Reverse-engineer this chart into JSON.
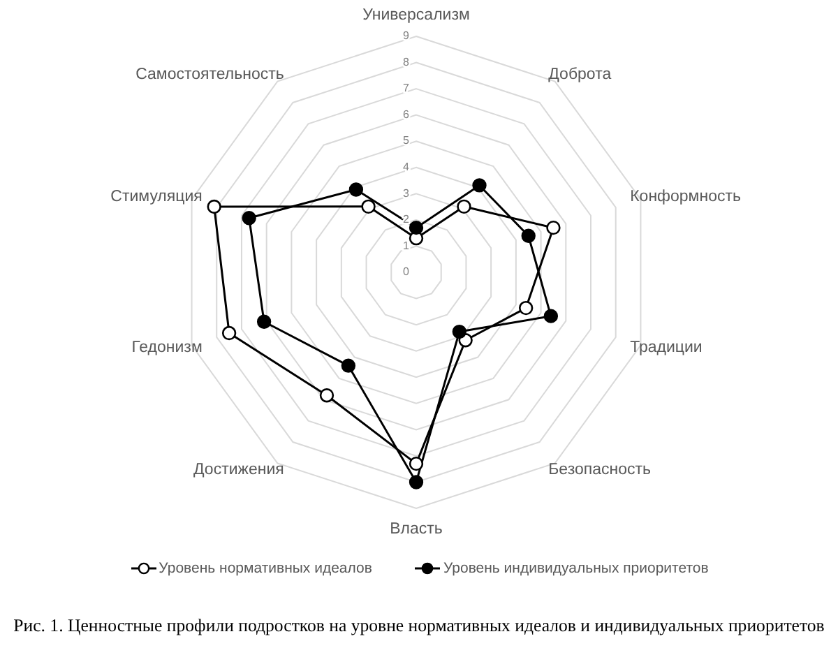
{
  "chart_data": {
    "type": "radar",
    "categories": [
      "Универсализм",
      "Доброта",
      "Конформность",
      "Традиции",
      "Безопасность",
      "Власть",
      "Достижения",
      "Гедонизм",
      "Стимуляция",
      "Самостоятельность"
    ],
    "series": [
      {
        "name": "Уровень нормативных идеалов",
        "color": "#000000",
        "colors": [
          "#ffffff",
          "#ffffff",
          "#ffffff",
          "#ffffff",
          "#ffffff",
          "#ffffff",
          "#ffffff",
          "#ffffff",
          "#ffffff",
          "#ffffff"
        ],
        "values": [
          1.3,
          3.1,
          5.5,
          4.4,
          3.2,
          7.3,
          5.8,
          7.5,
          8.1,
          3.1
        ]
      },
      {
        "name": "Уровень индивидуальных приоритетов",
        "color": "#000000",
        "values": [
          1.7,
          4.1,
          4.5,
          5.4,
          2.8,
          8.0,
          4.4,
          6.1,
          6.7,
          3.9
        ]
      }
    ],
    "ylim": [
      0,
      9
    ],
    "yticks": [
      0,
      1,
      2,
      3,
      4,
      5,
      6,
      7,
      8,
      9
    ],
    "grid": true,
    "legend": "bottom",
    "marker": "circle",
    "line_style": "solid",
    "annotations": [
      "Рис. 1. Ценностные профили подростков на уровне нормативных идеалов и индивидуальных приоритетов"
    ]
  }
}
